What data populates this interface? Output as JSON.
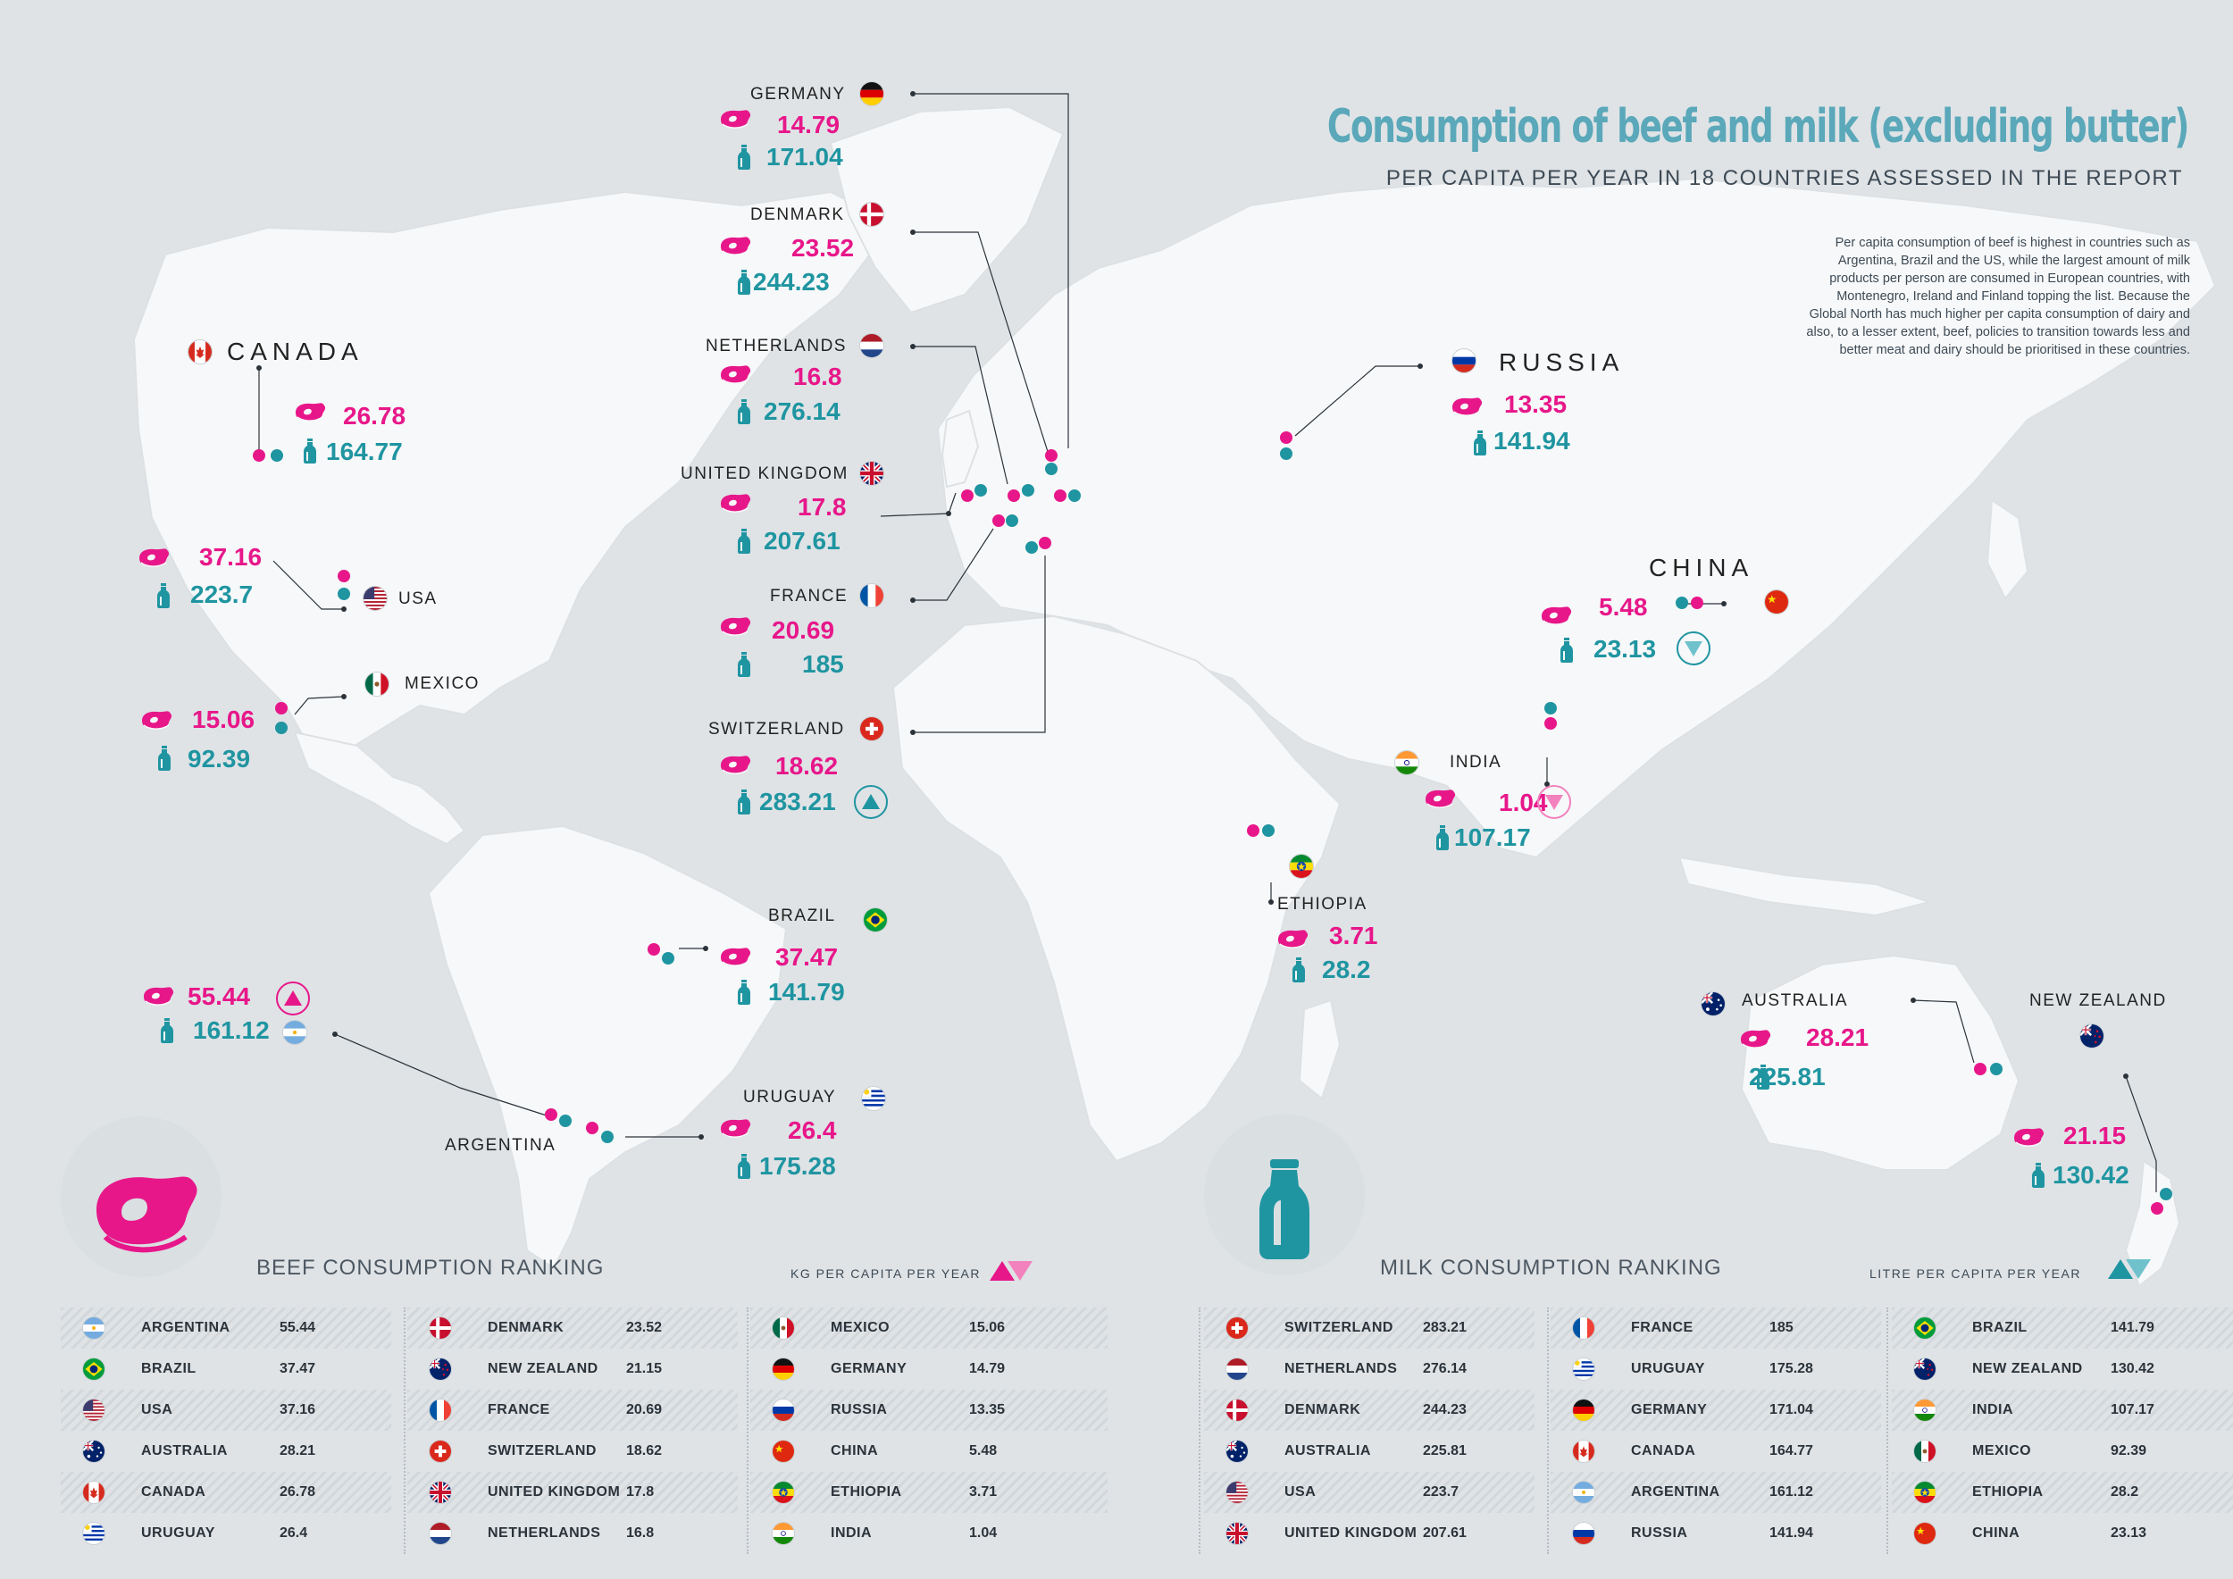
{
  "title": "Consumption of beef and milk (excluding butter)",
  "subtitle": "PER CAPITA PER YEAR IN 18 COUNTRIES ASSESSED IN THE REPORT",
  "description": "Per capita consumption of beef is highest in countries such as Argentina, Brazil and the US, while the largest amount of milk products per person are consumed in European countries, with Montenegro, Ireland and Finland topping the list. Because the Global North has much higher per capita consumption of dairy and also, to a lesser extent, beef, policies to transition towards less and better meat and dairy should be prioritised in these countries.",
  "colors": {
    "beef": "#e7178a",
    "milk": "#1f95a1",
    "land": "#f7f8f9",
    "sea": "#dfe3e6",
    "title": "#5aa8b9"
  },
  "icons": {
    "beef": "steak-icon",
    "milk": "milk-bottle-icon",
    "highest": "triangle-up-icon",
    "lowest": "triangle-down-icon"
  },
  "callouts": [
    {
      "key": "germany",
      "name": "GERMANY",
      "beef": "14.79",
      "milk": "171.04"
    },
    {
      "key": "denmark",
      "name": "DENMARK",
      "beef": "23.52",
      "milk": "244.23"
    },
    {
      "key": "netherlands",
      "name": "NETHERLANDS",
      "beef": "16.8",
      "milk": "276.14"
    },
    {
      "key": "uk",
      "name": "UNITED KINGDOM",
      "beef": "17.8",
      "milk": "207.61"
    },
    {
      "key": "france",
      "name": "FRANCE",
      "beef": "20.69",
      "milk": "185"
    },
    {
      "key": "switzerland",
      "name": "SWITZERLAND",
      "beef": "18.62",
      "milk": "283.21",
      "marker": "highest-milk"
    },
    {
      "key": "canada",
      "name": "CANADA",
      "beef": "26.78",
      "milk": "164.77"
    },
    {
      "key": "usa",
      "name": "USA",
      "beef": "37.16",
      "milk": "223.7"
    },
    {
      "key": "mexico",
      "name": "MEXICO",
      "beef": "15.06",
      "milk": "92.39"
    },
    {
      "key": "russia",
      "name": "RUSSIA",
      "beef": "13.35",
      "milk": "141.94"
    },
    {
      "key": "china",
      "name": "CHINA",
      "beef": "5.48",
      "milk": "23.13",
      "marker": "lowest-milk"
    },
    {
      "key": "india",
      "name": "INDIA",
      "beef": "1.04",
      "milk": "107.17",
      "marker": "lowest-beef"
    },
    {
      "key": "ethiopia",
      "name": "ETHIOPIA",
      "beef": "3.71",
      "milk": "28.2"
    },
    {
      "key": "brazil",
      "name": "BRAZIL",
      "beef": "37.47",
      "milk": "141.79"
    },
    {
      "key": "argentina",
      "name": "ARGENTINA",
      "beef": "55.44",
      "milk": "161.12",
      "marker": "highest-beef"
    },
    {
      "key": "uruguay",
      "name": "URUGUAY",
      "beef": "26.4",
      "milk": "175.28"
    },
    {
      "key": "australia",
      "name": "AUSTRALIA",
      "beef": "28.21",
      "milk": "225.81"
    },
    {
      "key": "newzealand",
      "name": "NEW ZEALAND",
      "beef": "21.15",
      "milk": "130.42"
    }
  ],
  "beef_ranking": {
    "title": "BEEF CONSUMPTION RANKING",
    "unit": "KG PER CAPITA PER YEAR",
    "rows": [
      {
        "key": "argentina",
        "name": "ARGENTINA",
        "value": "55.44"
      },
      {
        "key": "brazil",
        "name": "BRAZIL",
        "value": "37.47"
      },
      {
        "key": "usa",
        "name": "USA",
        "value": "37.16"
      },
      {
        "key": "australia",
        "name": "AUSTRALIA",
        "value": "28.21"
      },
      {
        "key": "canada",
        "name": "CANADA",
        "value": "26.78"
      },
      {
        "key": "uruguay",
        "name": "URUGUAY",
        "value": "26.4"
      },
      {
        "key": "denmark",
        "name": "DENMARK",
        "value": "23.52"
      },
      {
        "key": "newzealand",
        "name": "NEW ZEALAND",
        "value": "21.15"
      },
      {
        "key": "france",
        "name": "FRANCE",
        "value": "20.69"
      },
      {
        "key": "switzerland",
        "name": "SWITZERLAND",
        "value": "18.62"
      },
      {
        "key": "uk",
        "name": "UNITED KINGDOM",
        "value": "17.8"
      },
      {
        "key": "netherlands",
        "name": "NETHERLANDS",
        "value": "16.8"
      },
      {
        "key": "mexico",
        "name": "MEXICO",
        "value": "15.06"
      },
      {
        "key": "germany",
        "name": "GERMANY",
        "value": "14.79"
      },
      {
        "key": "russia",
        "name": "RUSSIA",
        "value": "13.35"
      },
      {
        "key": "china",
        "name": "CHINA",
        "value": "5.48"
      },
      {
        "key": "ethiopia",
        "name": "ETHIOPIA",
        "value": "3.71"
      },
      {
        "key": "india",
        "name": "INDIA",
        "value": "1.04"
      }
    ]
  },
  "milk_ranking": {
    "title": "MILK CONSUMPTION RANKING",
    "unit": "LITRE PER CAPITA PER YEAR",
    "rows": [
      {
        "key": "switzerland",
        "name": "SWITZERLAND",
        "value": "283.21"
      },
      {
        "key": "netherlands",
        "name": "NETHERLANDS",
        "value": "276.14"
      },
      {
        "key": "denmark",
        "name": "DENMARK",
        "value": "244.23"
      },
      {
        "key": "australia",
        "name": "AUSTRALIA",
        "value": "225.81"
      },
      {
        "key": "usa",
        "name": "USA",
        "value": "223.7"
      },
      {
        "key": "uk",
        "name": "UNITED KINGDOM",
        "value": "207.61"
      },
      {
        "key": "france",
        "name": "FRANCE",
        "value": "185"
      },
      {
        "key": "uruguay",
        "name": "URUGUAY",
        "value": "175.28"
      },
      {
        "key": "germany",
        "name": "GERMANY",
        "value": "171.04"
      },
      {
        "key": "canada",
        "name": "CANADA",
        "value": "164.77"
      },
      {
        "key": "argentina",
        "name": "ARGENTINA",
        "value": "161.12"
      },
      {
        "key": "russia",
        "name": "RUSSIA",
        "value": "141.94"
      },
      {
        "key": "brazil",
        "name": "BRAZIL",
        "value": "141.79"
      },
      {
        "key": "newzealand",
        "name": "NEW ZEALAND",
        "value": "130.42"
      },
      {
        "key": "india",
        "name": "INDIA",
        "value": "107.17"
      },
      {
        "key": "mexico",
        "name": "MEXICO",
        "value": "92.39"
      },
      {
        "key": "ethiopia",
        "name": "ETHIOPIA",
        "value": "28.2"
      },
      {
        "key": "china",
        "name": "CHINA",
        "value": "23.13"
      }
    ]
  }
}
